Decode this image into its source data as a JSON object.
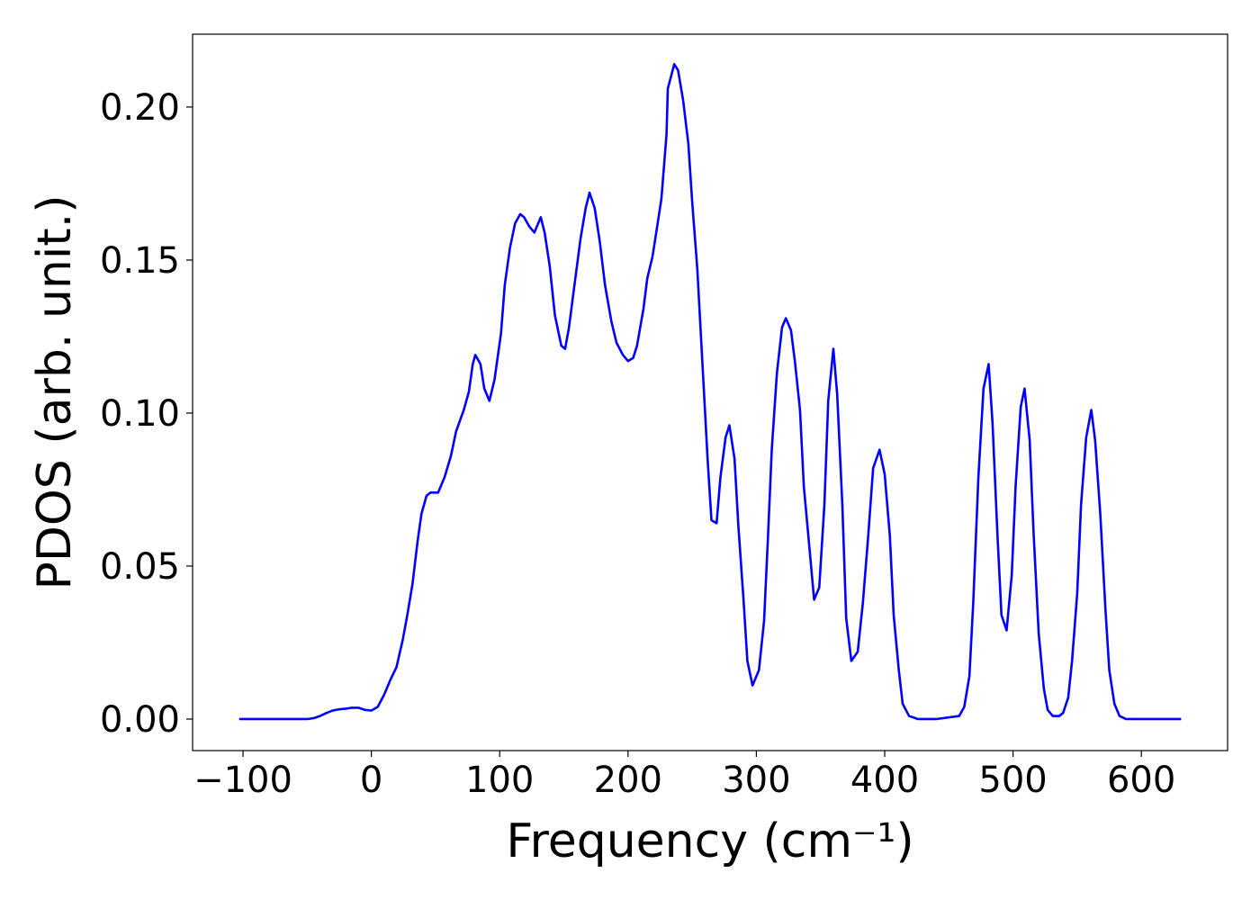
{
  "chart_data": {
    "type": "line",
    "x_label": "Frequency (cm⁻¹)",
    "y_label": "PDOS (arb. unit.)",
    "color": "#0000ff",
    "xlim": [
      -139.3,
      667.2
    ],
    "ylim": [
      -0.0103,
      0.2238
    ],
    "xticks": [
      {
        "value": -100,
        "label": "−100"
      },
      0,
      100,
      200,
      300,
      400,
      500,
      600
    ],
    "yticks": [
      {
        "value": 0,
        "label": "0.00"
      },
      {
        "value": 0.05,
        "label": "0.05"
      },
      {
        "value": 0.1,
        "label": "0.10"
      },
      {
        "value": 0.15,
        "label": "0.15"
      },
      {
        "value": 0.2,
        "label": "0.20"
      }
    ],
    "x": [
      -103,
      -80,
      -60,
      -50,
      -45,
      -40,
      -35,
      -30,
      -25,
      -20,
      -15,
      -10,
      -5,
      0,
      5,
      10,
      15,
      19.6,
      24.5,
      28,
      32,
      36,
      39,
      43,
      46,
      52,
      57,
      62,
      66,
      72,
      76,
      79,
      81,
      85,
      88,
      92,
      96,
      101,
      104,
      108,
      112,
      116,
      119,
      123,
      127,
      132,
      135,
      139,
      143,
      148,
      151,
      154,
      158,
      163,
      167,
      170,
      174,
      178,
      182,
      187,
      191,
      196,
      200,
      204,
      207,
      212,
      215,
      219,
      222,
      226,
      230,
      231,
      236,
      239,
      243,
      247,
      250,
      254,
      258,
      262,
      265,
      269,
      272,
      276,
      279,
      283,
      286,
      290,
      293,
      297,
      302,
      306,
      309,
      312,
      316,
      320,
      323,
      327,
      330,
      334,
      337,
      342,
      345,
      349,
      353,
      356,
      360,
      363,
      367,
      370,
      374,
      379,
      383,
      387,
      391,
      396,
      400,
      404,
      407,
      411,
      414,
      419,
      426,
      440,
      458,
      462,
      466,
      469,
      473,
      477,
      481,
      484,
      488,
      491,
      495,
      499,
      502,
      506,
      509,
      513,
      516,
      520,
      524,
      527,
      531,
      536,
      539,
      543,
      546,
      550,
      553,
      557,
      561,
      564,
      568,
      572,
      575,
      579,
      583,
      588,
      600,
      631
    ],
    "values": [
      0,
      0,
      0,
      0,
      0.0003,
      0.001,
      0.002,
      0.0028,
      0.0032,
      0.0034,
      0.0037,
      0.0037,
      0.003,
      0.0028,
      0.004,
      0.008,
      0.013,
      0.017,
      0.026,
      0.034,
      0.044,
      0.058,
      0.067,
      0.073,
      0.074,
      0.074,
      0.079,
      0.086,
      0.094,
      0.101,
      0.107,
      0.116,
      0.119,
      0.116,
      0.108,
      0.104,
      0.111,
      0.126,
      0.142,
      0.154,
      0.162,
      0.165,
      0.164,
      0.161,
      0.159,
      0.164,
      0.159,
      0.148,
      0.132,
      0.122,
      0.121,
      0.128,
      0.141,
      0.157,
      0.167,
      0.172,
      0.167,
      0.156,
      0.142,
      0.13,
      0.123,
      0.119,
      0.117,
      0.118,
      0.122,
      0.134,
      0.144,
      0.151,
      0.159,
      0.17,
      0.191,
      0.206,
      0.214,
      0.212,
      0.202,
      0.188,
      0.169,
      0.147,
      0.116,
      0.085,
      0.065,
      0.064,
      0.079,
      0.092,
      0.096,
      0.085,
      0.063,
      0.039,
      0.019,
      0.011,
      0.016,
      0.032,
      0.059,
      0.088,
      0.113,
      0.128,
      0.131,
      0.127,
      0.117,
      0.101,
      0.076,
      0.053,
      0.039,
      0.043,
      0.07,
      0.104,
      0.121,
      0.106,
      0.07,
      0.033,
      0.019,
      0.022,
      0.038,
      0.059,
      0.082,
      0.088,
      0.08,
      0.06,
      0.034,
      0.016,
      0.005,
      0.001,
      0,
      0,
      0.001,
      0.004,
      0.014,
      0.038,
      0.079,
      0.108,
      0.116,
      0.097,
      0.059,
      0.034,
      0.029,
      0.047,
      0.076,
      0.102,
      0.108,
      0.091,
      0.061,
      0.028,
      0.01,
      0.003,
      0.001,
      0.001,
      0.002,
      0.007,
      0.019,
      0.041,
      0.07,
      0.092,
      0.101,
      0.091,
      0.067,
      0.036,
      0.016,
      0.005,
      0.001,
      0,
      0,
      0
    ]
  }
}
